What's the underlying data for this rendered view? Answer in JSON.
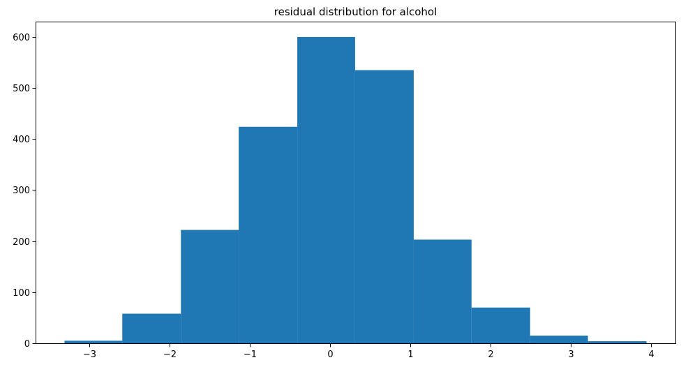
{
  "chart_data": {
    "type": "bar",
    "title": "residual distribution for alcohol",
    "xlabel": "",
    "ylabel": "",
    "bins": [
      {
        "x0": -3.31,
        "x1": -2.59,
        "count": 5
      },
      {
        "x0": -2.59,
        "x1": -1.86,
        "count": 58
      },
      {
        "x0": -1.86,
        "x1": -1.14,
        "count": 222
      },
      {
        "x0": -1.14,
        "x1": -0.41,
        "count": 424
      },
      {
        "x0": -0.41,
        "x1": 0.31,
        "count": 600
      },
      {
        "x0": 0.31,
        "x1": 1.04,
        "count": 535
      },
      {
        "x0": 1.04,
        "x1": 1.76,
        "count": 203
      },
      {
        "x0": 1.76,
        "x1": 2.49,
        "count": 70
      },
      {
        "x0": 2.49,
        "x1": 3.21,
        "count": 15
      },
      {
        "x0": 3.21,
        "x1": 3.94,
        "count": 4
      }
    ],
    "xlim": [
      -3.67,
      4.3
    ],
    "ylim": [
      0,
      630
    ],
    "xticks": [
      -3,
      -2,
      -1,
      0,
      1,
      2,
      3,
      4
    ],
    "xtick_labels": [
      "−3",
      "−2",
      "−1",
      "0",
      "1",
      "2",
      "3",
      "4"
    ],
    "yticks": [
      0,
      100,
      200,
      300,
      400,
      500,
      600
    ],
    "ytick_labels": [
      "0",
      "100",
      "200",
      "300",
      "400",
      "500",
      "600"
    ],
    "grid": false,
    "bar_color": "#1f77b4"
  }
}
